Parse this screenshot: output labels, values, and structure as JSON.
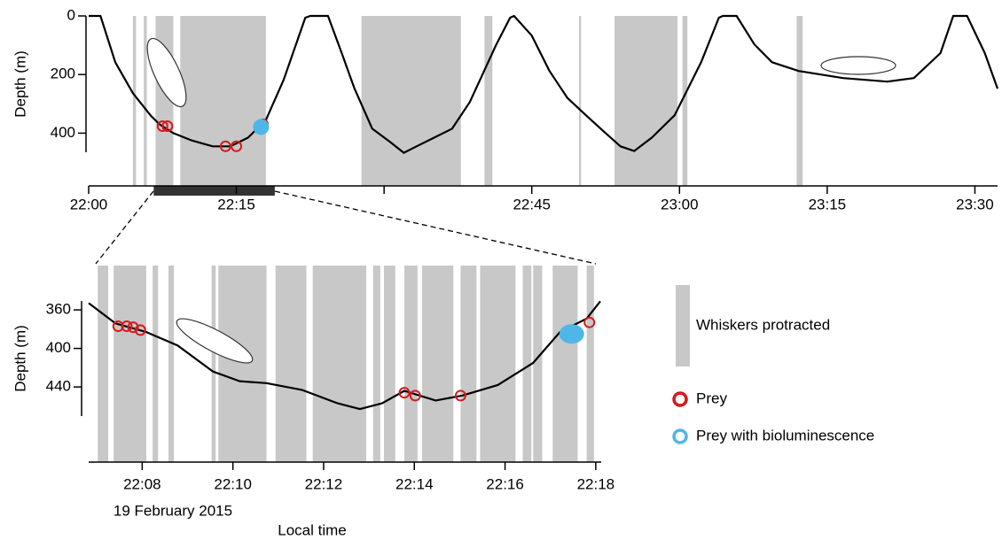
{
  "chart_data": [
    {
      "type": "line",
      "ylabel": "Depth (m)",
      "y_inverted": true,
      "xlim": [
        0,
        92.3
      ],
      "ylim": [
        0,
        580
      ],
      "xticks": [
        {
          "value": 0,
          "label": "22:00"
        },
        {
          "value": 15,
          "label": "22:15"
        },
        {
          "value": 30,
          "label": null
        },
        {
          "value": 45,
          "label": "22:45"
        },
        {
          "value": 60,
          "label": "23:00"
        },
        {
          "value": 75,
          "label": "23:15"
        },
        {
          "value": 90,
          "label": "23:30"
        }
      ],
      "yticks": [
        0,
        200,
        400
      ],
      "shade_color": "#c8c8c8",
      "shaded_intervals": [
        [
          4.5,
          4.8
        ],
        [
          5.6,
          5.9
        ],
        [
          6.8,
          8.6
        ],
        [
          9.3,
          18
        ],
        [
          27.7,
          37.8
        ],
        [
          40.2,
          41
        ],
        [
          49.8,
          50
        ],
        [
          53.4,
          59.8
        ],
        [
          60.3,
          60.8
        ],
        [
          71.9,
          72.5
        ]
      ],
      "zoom_range": [
        6.6,
        18.9
      ],
      "series": [
        {
          "kind": "line",
          "color": "#000000",
          "x": [
            0,
            1.2,
            2.7,
            4.5,
            6.3,
            7.2,
            8.6,
            10.4,
            12.6,
            14.4,
            16.2,
            18,
            19.8,
            22,
            22.5,
            24.3,
            25.7,
            27,
            28.8,
            30.6,
            32,
            33.3,
            35.1,
            36.9,
            38.7,
            41.4,
            42.8,
            43.2,
            45,
            46.8,
            48.6,
            50.5,
            52.3,
            54,
            55.4,
            57.2,
            59.5,
            62.2,
            64,
            64.4,
            65.8,
            67.6,
            69.4,
            72.1,
            76.6,
            81.1,
            83.8,
            86.5,
            87.8,
            89.2,
            91,
            92.3
          ],
          "values": [
            0,
            0,
            158,
            264,
            340,
            370,
            400,
            424,
            445,
            445,
            415,
            355,
            218,
            6,
            0,
            0,
            127,
            248,
            385,
            430,
            467,
            445,
            415,
            385,
            294,
            97,
            6,
            0,
            67,
            188,
            279,
            339,
            394,
            445,
            461,
            415,
            339,
            158,
            6,
            0,
            0,
            97,
            158,
            188,
            212,
            224,
            212,
            127,
            0,
            0,
            127,
            248
          ]
        },
        {
          "kind": "prey",
          "color": "#d7191c",
          "x": [
            7.5,
            8,
            13.9,
            15,
            17.7
          ],
          "values": [
            376,
            376,
            445,
            445,
            370
          ]
        },
        {
          "kind": "glow",
          "color": "#4fb6e8",
          "x": [
            17.5
          ],
          "values": [
            379
          ]
        }
      ]
    },
    {
      "type": "line",
      "ylabel": "Depth (m)",
      "y_inverted": true,
      "xlabel": "Local time",
      "date": "19 February 2015",
      "xlim": [
        6.82,
        18.12
      ],
      "ylim": [
        314,
        518
      ],
      "xticks": [
        {
          "value": 8,
          "label": "22:08"
        },
        {
          "value": 10,
          "label": "22:10"
        },
        {
          "value": 12,
          "label": "22:12"
        },
        {
          "value": 14,
          "label": "22:14"
        },
        {
          "value": 16,
          "label": "22:16"
        },
        {
          "value": 18,
          "label": "22:18"
        }
      ],
      "yticks": [
        360,
        400,
        440
      ],
      "shade_color": "#c8c8c8",
      "shade_name": "Whiskers protracted",
      "shaded_intervals": [
        [
          7.02,
          7.25
        ],
        [
          7.37,
          8.09
        ],
        [
          8.23,
          8.35
        ],
        [
          8.58,
          8.7
        ],
        [
          9.53,
          9.62
        ],
        [
          9.68,
          10.74
        ],
        [
          10.94,
          11.62
        ],
        [
          11.76,
          12.94
        ],
        [
          13.09,
          13.25
        ],
        [
          13.33,
          13.58
        ],
        [
          13.78,
          14.07
        ],
        [
          14.17,
          14.86
        ],
        [
          15.02,
          15.37
        ],
        [
          15.45,
          16.23
        ],
        [
          16.39,
          16.58
        ],
        [
          16.62,
          16.82
        ],
        [
          17.05,
          17.6
        ],
        [
          17.8,
          17.96
        ]
      ],
      "series": [
        {
          "kind": "line",
          "color": "#000000",
          "x": [
            6.82,
            7.41,
            8.09,
            8.78,
            9.56,
            10.15,
            10.74,
            11.52,
            12.31,
            12.8,
            13.29,
            13.78,
            14.47,
            15.05,
            15.84,
            16.62,
            17.21,
            17.8,
            18.1
          ],
          "values": [
            353,
            374,
            383,
            397,
            424,
            434,
            436,
            443,
            457,
            463,
            457,
            444,
            454,
            449,
            438,
            415,
            383,
            369,
            351
          ]
        },
        {
          "kind": "prey",
          "name": "Prey",
          "color": "#d7191c",
          "x": [
            7.47,
            7.66,
            7.8,
            7.96,
            13.78,
            14.02,
            15.02,
            17.86
          ],
          "values": [
            377,
            377,
            378,
            381,
            446,
            449,
            449,
            373
          ]
        },
        {
          "kind": "glow",
          "name": "Prey with bioluminescence",
          "color": "#4fb6e8",
          "x": [
            17.47
          ],
          "values": [
            385
          ]
        }
      ]
    }
  ]
}
